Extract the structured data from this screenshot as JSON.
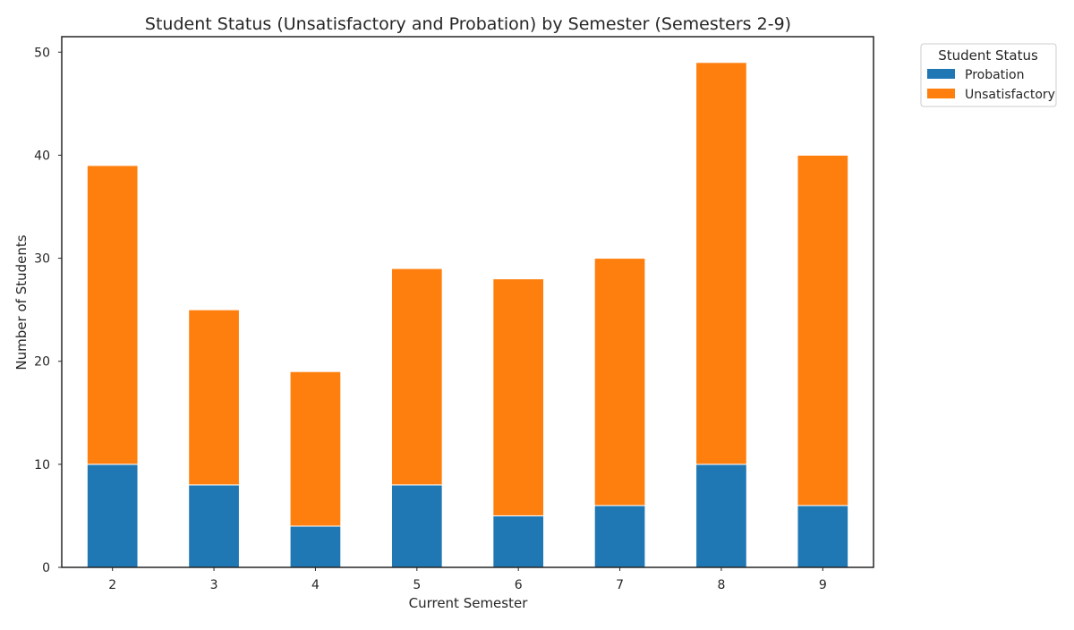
{
  "chart_data": {
    "type": "bar",
    "stacked": true,
    "title": "Student Status (Unsatisfactory and Probation) by Semester (Semesters 2-9)",
    "xlabel": "Current Semester",
    "ylabel": "Number of Students",
    "categories": [
      "2",
      "3",
      "4",
      "5",
      "6",
      "7",
      "8",
      "9"
    ],
    "series": [
      {
        "name": "Probation",
        "color": "#1f77b4",
        "values": [
          10,
          8,
          4,
          8,
          5,
          6,
          10,
          6
        ]
      },
      {
        "name": "Unsatisfactory",
        "color": "#ff7f0e",
        "values": [
          29,
          17,
          15,
          21,
          23,
          24,
          39,
          34
        ]
      }
    ],
    "ylim": [
      0,
      51.5
    ],
    "yticks": [
      0,
      10,
      20,
      30,
      40,
      50
    ],
    "grid": false,
    "legend": {
      "title": "Student Status",
      "placement": "outside top-right"
    }
  }
}
